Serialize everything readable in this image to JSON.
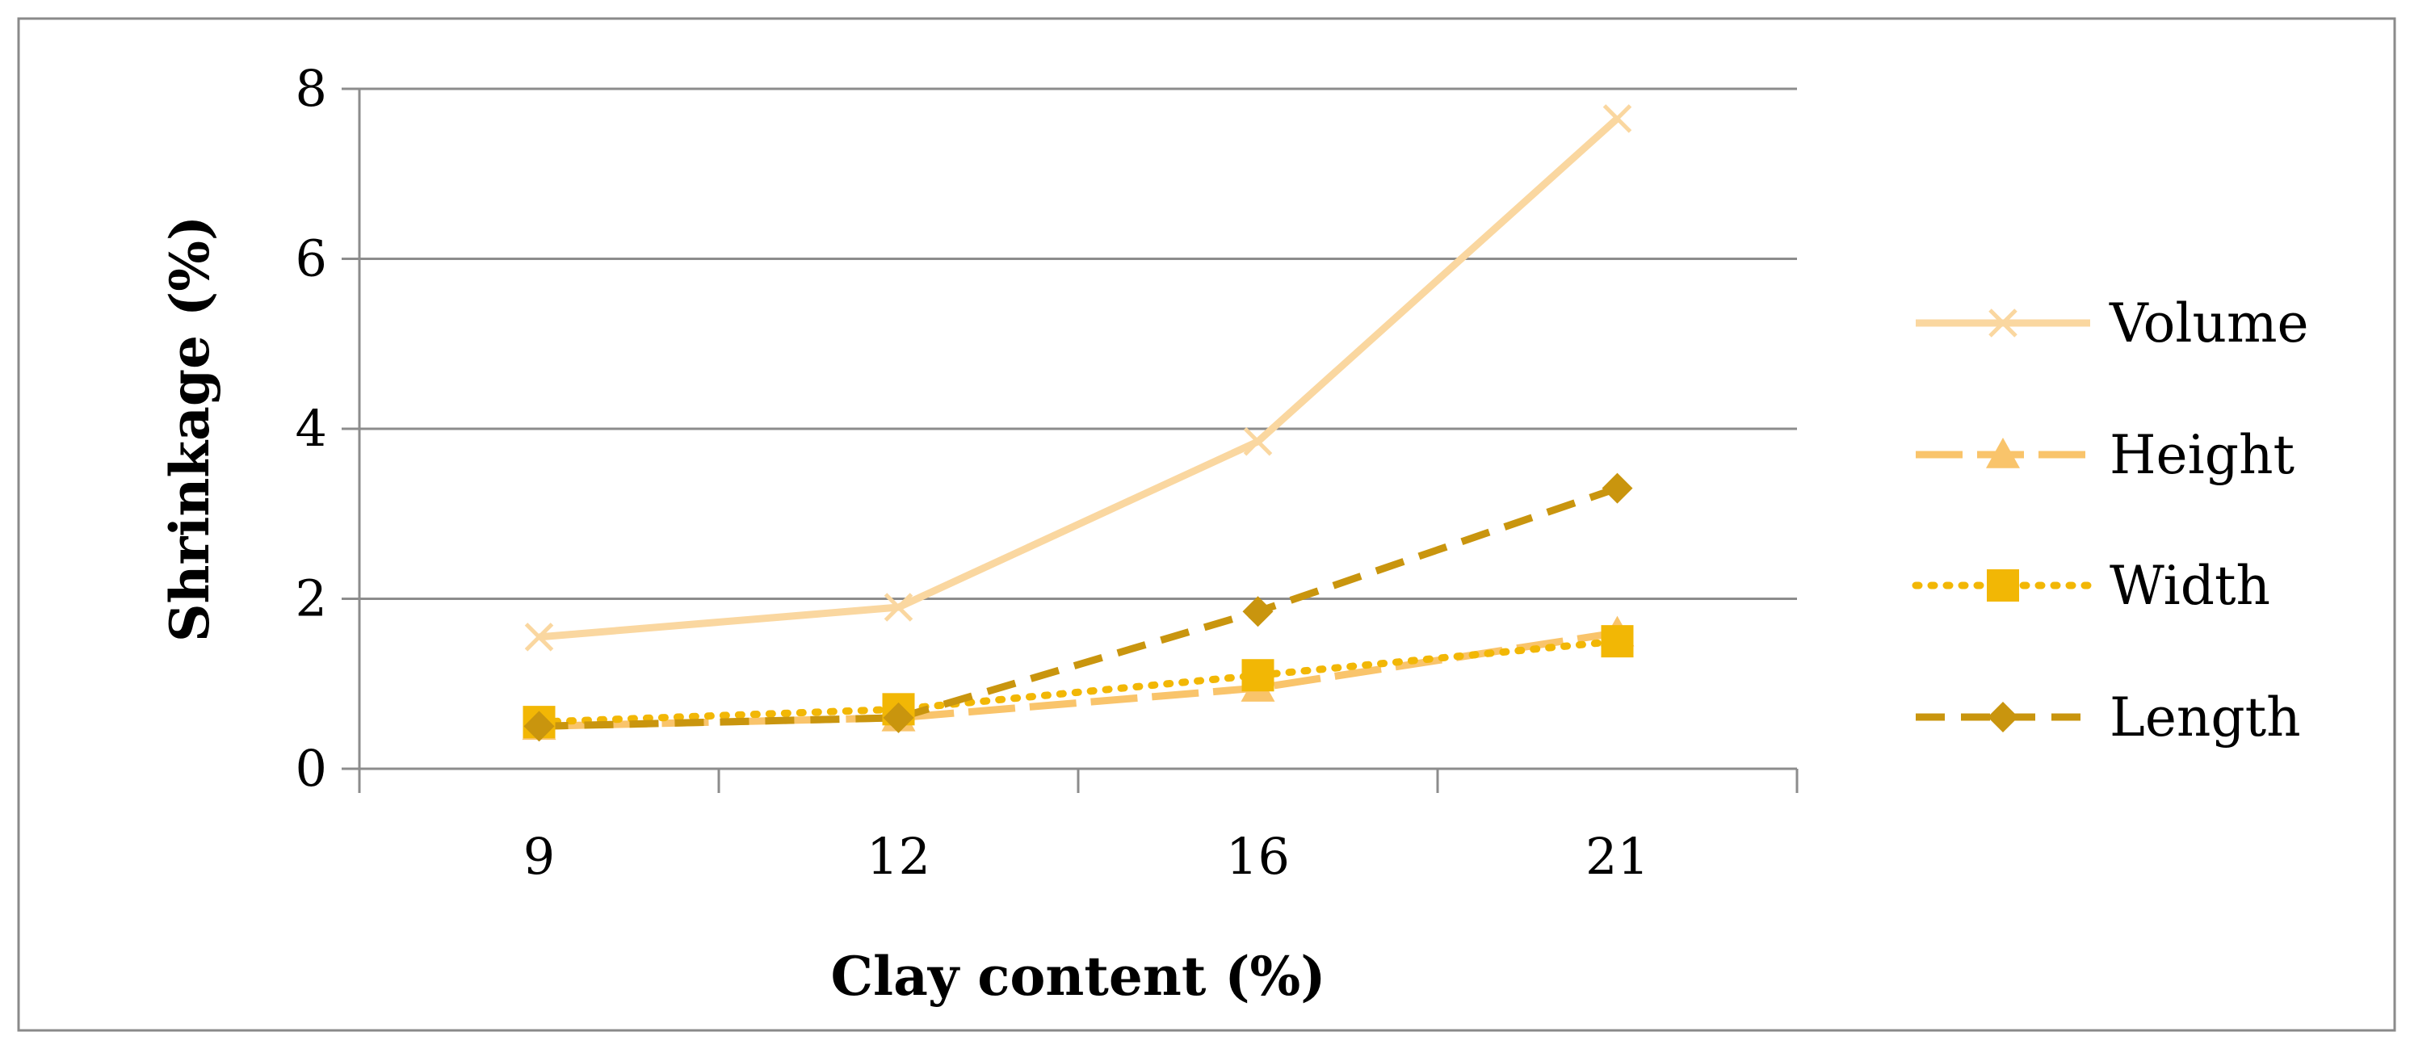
{
  "chart_data": {
    "type": "line",
    "xlabel": "Clay content (%)",
    "ylabel": "Shrinkage (%)",
    "categories": [
      "9",
      "12",
      "16",
      "21"
    ],
    "ylim": [
      0,
      8
    ],
    "yticks": [
      "0",
      "2",
      "4",
      "6",
      "8"
    ],
    "grid": true,
    "legend_position": "right",
    "series": [
      {
        "name": "Volume",
        "values": [
          1.55,
          1.9,
          3.85,
          7.65
        ],
        "color": "#FAD7A0",
        "marker": "x",
        "dash": "solid"
      },
      {
        "name": "Height",
        "values": [
          0.5,
          0.6,
          0.95,
          1.6
        ],
        "color": "#F9C46B",
        "marker": "triangle",
        "dash": "longdash"
      },
      {
        "name": "Width",
        "values": [
          0.55,
          0.7,
          1.1,
          1.5
        ],
        "color": "#F2B705",
        "marker": "square",
        "dash": "dotted"
      },
      {
        "name": "Length",
        "values": [
          0.5,
          0.6,
          1.85,
          3.3
        ],
        "color": "#C9950E",
        "marker": "diamond",
        "dash": "dashed"
      }
    ]
  }
}
